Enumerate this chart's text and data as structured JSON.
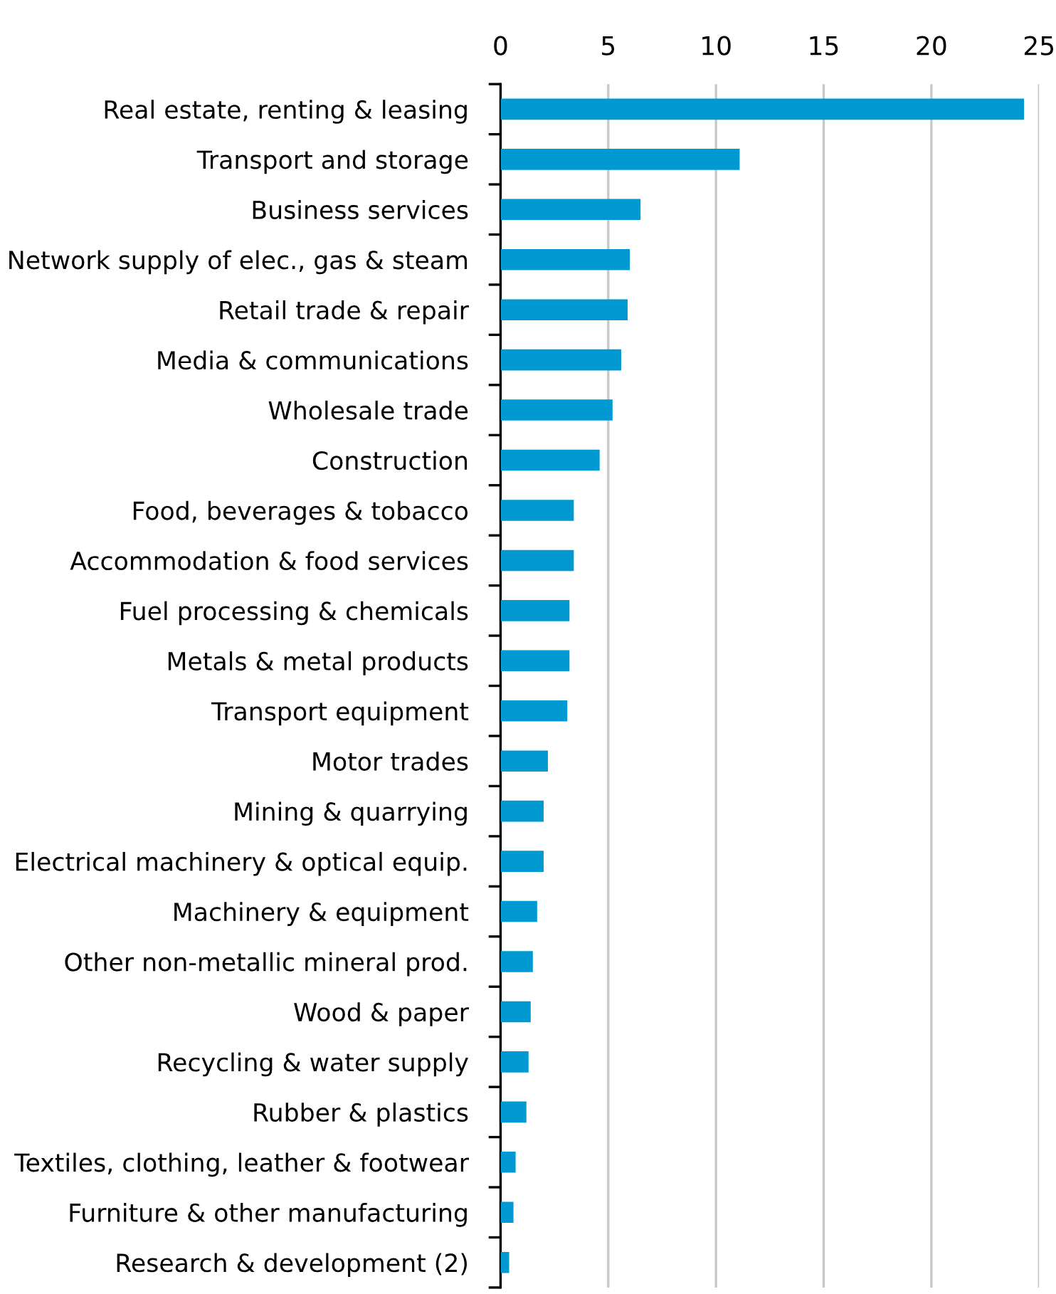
{
  "chart_data": {
    "type": "bar",
    "orientation": "horizontal",
    "categories": [
      "Real estate, renting & leasing",
      "Transport and storage",
      "Business services",
      "Network supply of elec., gas & steam",
      "Retail trade & repair",
      "Media & communications",
      "Wholesale trade",
      "Construction",
      "Food, beverages & tobacco",
      "Accommodation & food services",
      "Fuel processing & chemicals",
      "Metals & metal products",
      "Transport equipment",
      "Motor trades",
      "Mining & quarrying",
      "Electrical machinery & optical equip.",
      "Machinery & equipment",
      "Other non-metallic mineral prod.",
      "Wood & paper",
      "Recycling & water supply",
      "Rubber & plastics",
      "Textiles, clothing, leather & footwear",
      "Furniture & other manufacturing",
      "Research & development (2)"
    ],
    "values": [
      24.3,
      11.1,
      6.5,
      6.0,
      5.9,
      5.6,
      5.2,
      4.6,
      3.4,
      3.4,
      3.2,
      3.2,
      3.1,
      2.2,
      2.0,
      2.0,
      1.7,
      1.5,
      1.4,
      1.3,
      1.2,
      0.7,
      0.6,
      0.4
    ],
    "color": "#0099d1",
    "xlim": [
      0,
      25
    ],
    "xticks": [
      0,
      5,
      10,
      15,
      20,
      25
    ],
    "grid": "x"
  }
}
